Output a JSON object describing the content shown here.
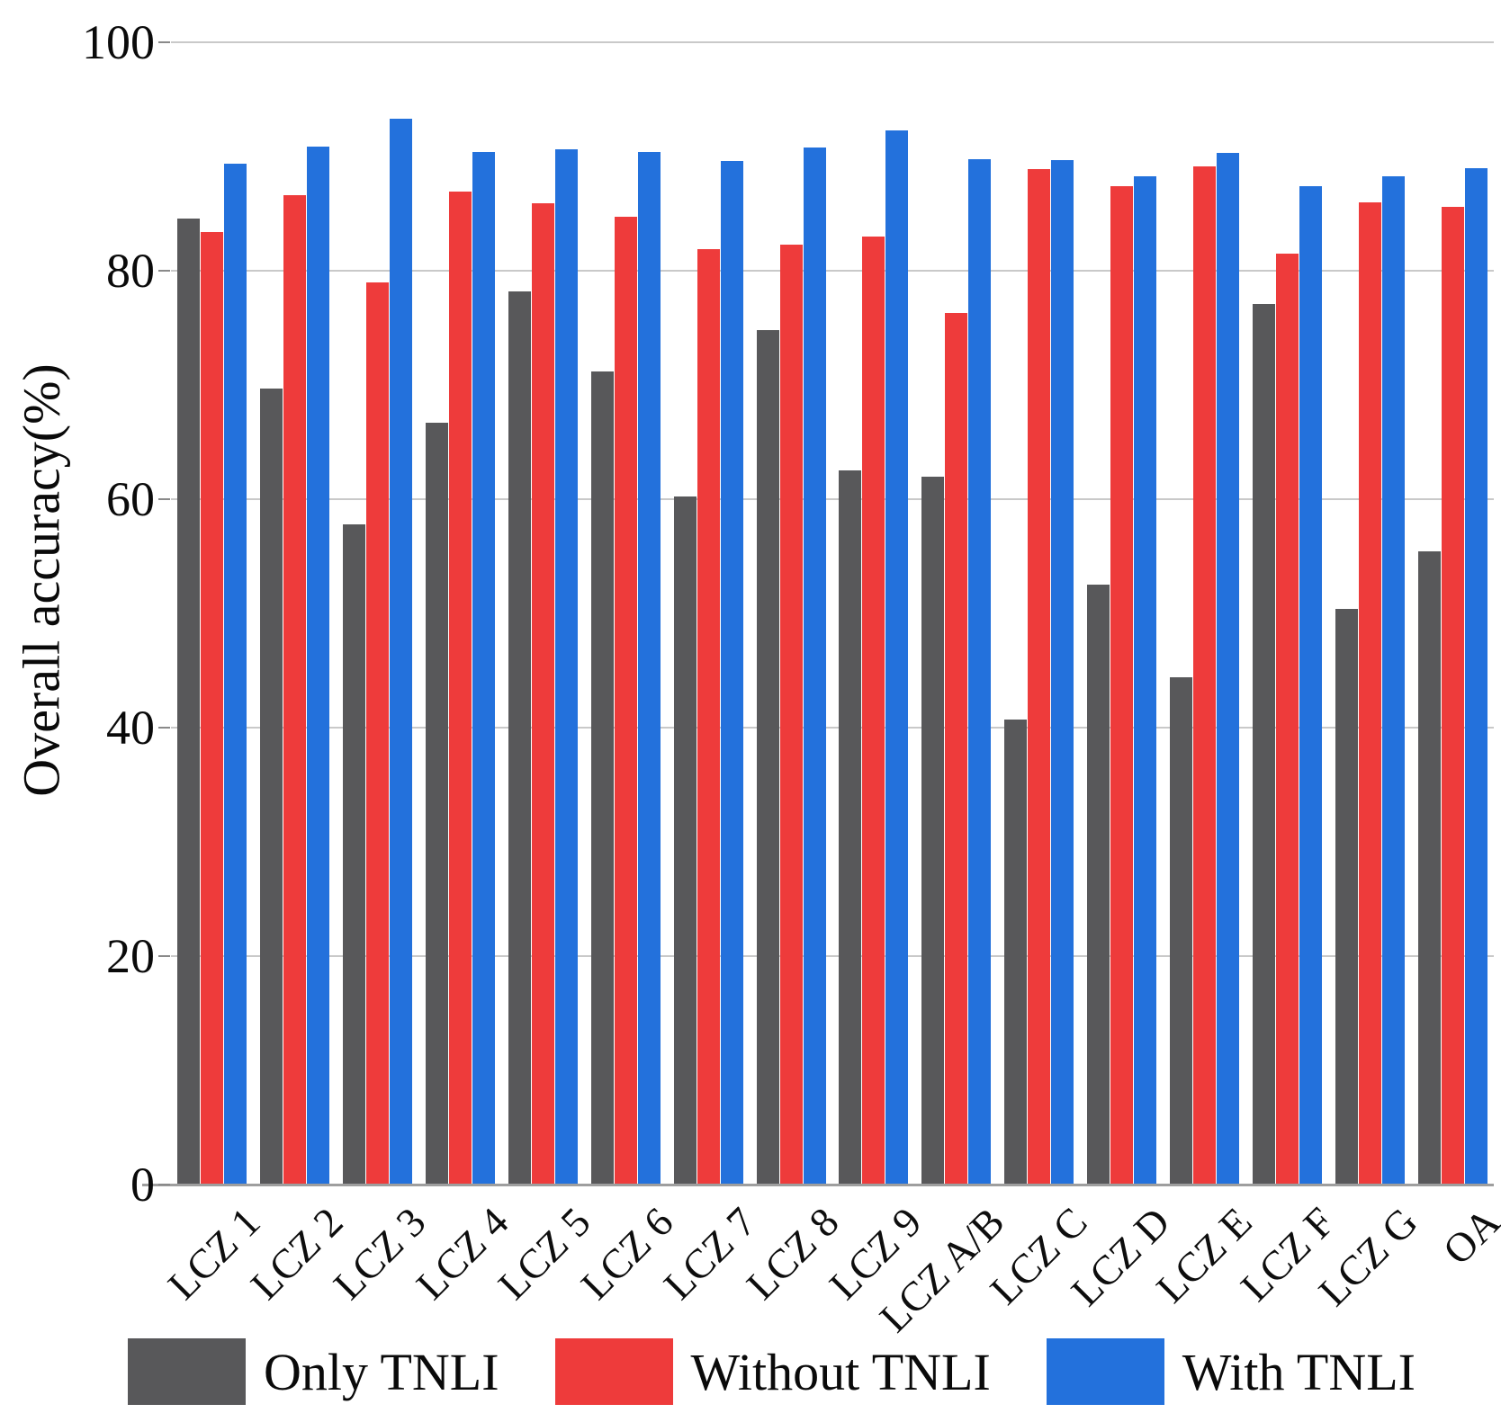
{
  "chart_data": {
    "type": "bar",
    "title": "",
    "xlabel": "",
    "ylabel": "Overall accuracy(%)",
    "ylim": [
      0,
      100
    ],
    "yticks": [
      100,
      80,
      60,
      40,
      20,
      0
    ],
    "grid": true,
    "legend_position": "bottom",
    "categories": [
      "LCZ 1",
      "LCZ 2",
      "LCZ 3",
      "LCZ 4",
      "LCZ 5",
      "LCZ 6",
      "LCZ 7",
      "LCZ 8",
      "LCZ 9",
      "LCZ A/B",
      "LCZ C",
      "LCZ D",
      "LCZ E",
      "LCZ F",
      "LCZ G",
      "OA"
    ],
    "series": [
      {
        "name": "Only TNLI",
        "color": "#58585A",
        "values": [
          84.6,
          69.7,
          57.8,
          66.7,
          78.2,
          71.2,
          60.2,
          74.8,
          62.5,
          62.0,
          40.7,
          52.5,
          44.4,
          77.1,
          50.4,
          55.4
        ]
      },
      {
        "name": "Without TNLI",
        "color": "#EE3B3B",
        "values": [
          83.4,
          86.6,
          79.0,
          86.9,
          85.9,
          84.7,
          81.9,
          82.3,
          83.0,
          76.3,
          88.9,
          87.4,
          89.1,
          81.5,
          86.0,
          85.6
        ]
      },
      {
        "name": "With TNLI",
        "color": "#2371DC",
        "values": [
          89.4,
          90.9,
          93.3,
          90.4,
          90.6,
          90.4,
          89.6,
          90.8,
          92.3,
          89.8,
          89.7,
          88.3,
          90.3,
          87.4,
          88.3,
          89.0
        ]
      }
    ]
  },
  "colors": {
    "gridline": "#c9c9c9",
    "baseline": "#9e9e9e",
    "text": "#0a0a0a"
  }
}
